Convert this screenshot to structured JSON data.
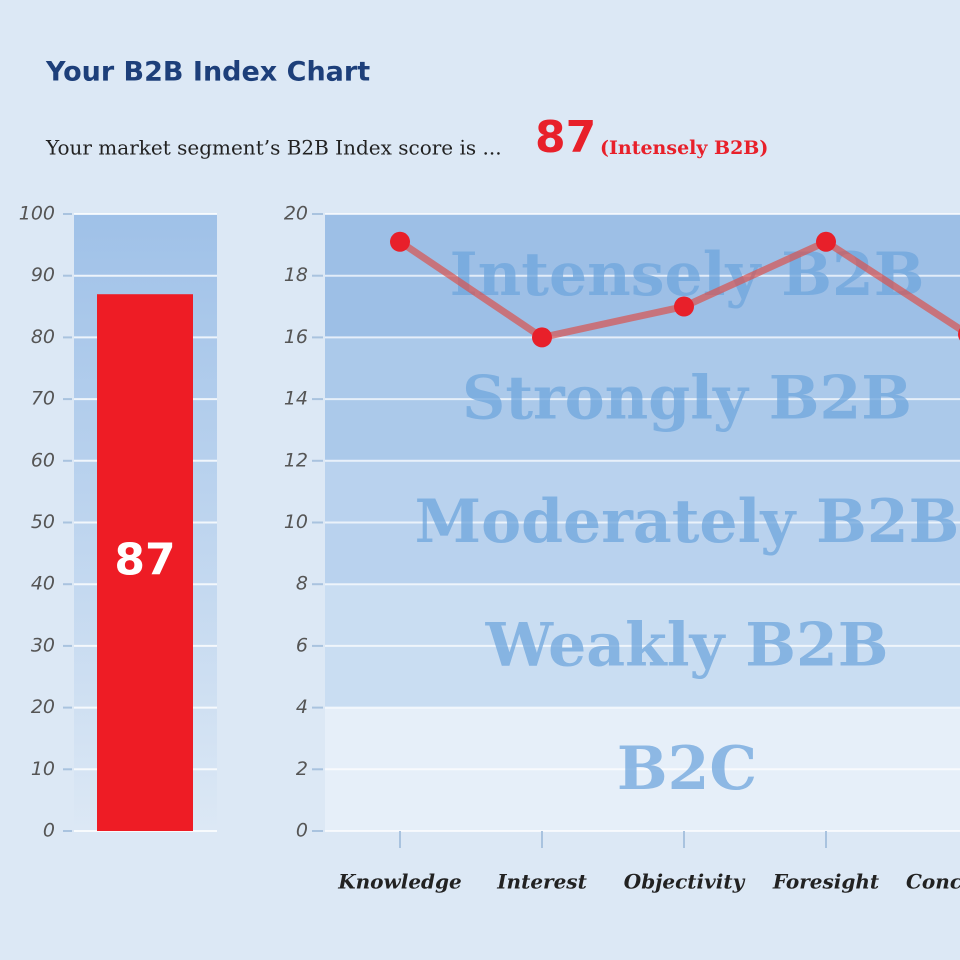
{
  "header": {
    "title": "Your B2B Index Chart",
    "subtitle": "Your market segment’s B2B Index score is ...",
    "score": 87,
    "rating": "(Intensely B2B)"
  },
  "chart_data": [
    {
      "type": "bar",
      "categories": [
        null
      ],
      "values": [
        87
      ],
      "color": "#ee1c25",
      "ylim": [
        0,
        100
      ],
      "yticks": [
        0,
        10,
        20,
        30,
        40,
        50,
        60,
        70,
        80,
        90,
        100
      ],
      "grid": true
    },
    {
      "type": "line",
      "categories": [
        "Knowledge",
        "Interest",
        "Objectivity",
        "Foresight",
        "Conc"
      ],
      "values": [
        19.1,
        16,
        17,
        19.1,
        16.1
      ],
      "color": "#e8202a",
      "ylim": [
        0,
        20
      ],
      "yticks": [
        0,
        2,
        4,
        6,
        8,
        10,
        12,
        14,
        16,
        18,
        20
      ],
      "grid": true,
      "bands": [
        {
          "label": "B2C",
          "from": 0,
          "to": 4,
          "color": "#e6eff9"
        },
        {
          "label": "Weakly B2B",
          "from": 4,
          "to": 8,
          "color": "#c9ddf2"
        },
        {
          "label": "Moderately B2B",
          "from": 8,
          "to": 12,
          "color": "#b9d2ee"
        },
        {
          "label": "Strongly B2B",
          "from": 12,
          "to": 16,
          "color": "#abc9ea"
        },
        {
          "label": "Intensely B2B",
          "from": 16,
          "to": 20,
          "color": "#9dbfe6"
        }
      ]
    }
  ]
}
